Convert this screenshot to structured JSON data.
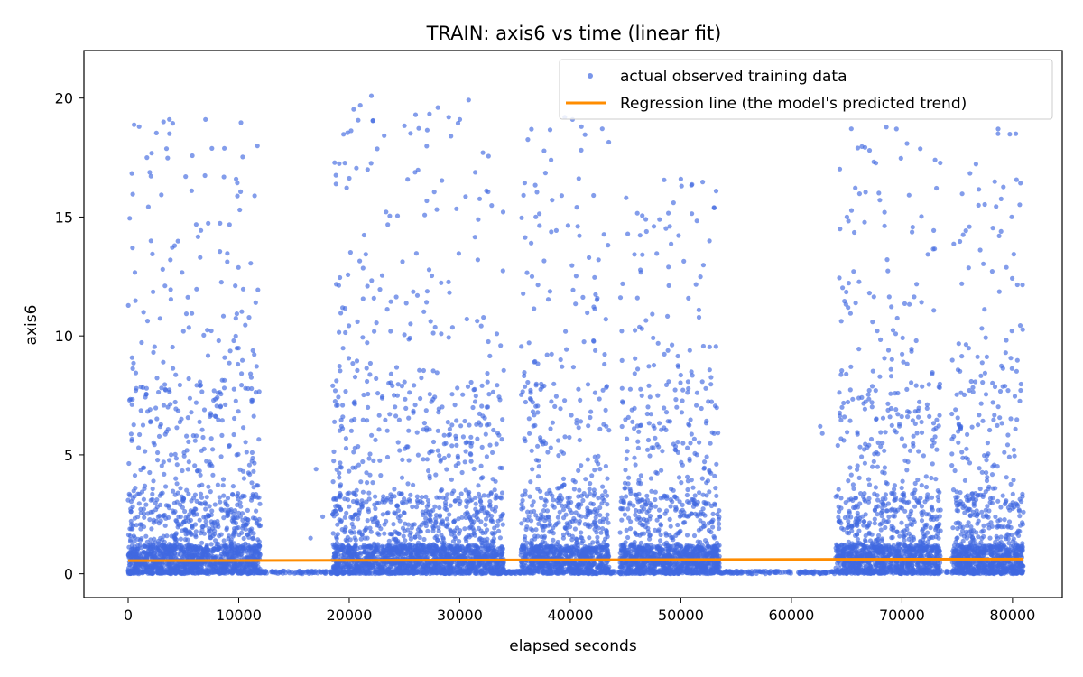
{
  "chart_data": {
    "type": "scatter",
    "title": "TRAIN: axis6 vs time (linear fit)",
    "xlabel": "elapsed seconds",
    "ylabel": "axis6",
    "xlim": [
      -4000,
      84500
    ],
    "ylim": [
      -1,
      22
    ],
    "xticks": [
      0,
      10000,
      20000,
      30000,
      40000,
      50000,
      60000,
      70000,
      80000
    ],
    "yticks": [
      0,
      5,
      10,
      15,
      20
    ],
    "grid": false,
    "legend_position": "top-right",
    "colors": {
      "scatter": "#4169e1",
      "line": "#ff8c00"
    },
    "series": [
      {
        "name": "actual observed training data",
        "kind": "scatter",
        "clusters": [
          {
            "x_range": [
              0,
              12000
            ],
            "max_y": 19.2
          },
          {
            "x_range": [
              18500,
              34000
            ],
            "max_y": 20.1
          },
          {
            "x_range": [
              35500,
              43500
            ],
            "max_y": 19.2
          },
          {
            "x_range": [
              44500,
              53500
            ],
            "max_y": 16.6
          },
          {
            "x_range": [
              64000,
              73500
            ],
            "max_y": 18.8
          },
          {
            "x_range": [
              74500,
              81000
            ],
            "max_y": 18.7
          }
        ],
        "notable_points": [
          {
            "x": 1000,
            "y": 18.8
          },
          {
            "x": 1700,
            "y": 17.5
          },
          {
            "x": 3200,
            "y": 19.0
          },
          {
            "x": 7000,
            "y": 19.1
          },
          {
            "x": 5200,
            "y": 16.7
          },
          {
            "x": 10100,
            "y": 15.3
          },
          {
            "x": 22000,
            "y": 20.1
          },
          {
            "x": 21000,
            "y": 19.7
          },
          {
            "x": 26000,
            "y": 19.3
          },
          {
            "x": 29000,
            "y": 19.2
          },
          {
            "x": 30000,
            "y": 19.1
          },
          {
            "x": 29200,
            "y": 18.4
          },
          {
            "x": 39500,
            "y": 19.2
          },
          {
            "x": 40200,
            "y": 19.1
          },
          {
            "x": 41000,
            "y": 18.8
          },
          {
            "x": 50000,
            "y": 16.6
          },
          {
            "x": 53000,
            "y": 15.4
          },
          {
            "x": 66000,
            "y": 17.9
          },
          {
            "x": 69500,
            "y": 18.7
          },
          {
            "x": 73000,
            "y": 17.4
          },
          {
            "x": 78700,
            "y": 18.7
          },
          {
            "x": 80300,
            "y": 18.5
          },
          {
            "x": 17000,
            "y": 4.4
          },
          {
            "x": 16500,
            "y": 1.5
          },
          {
            "x": 17600,
            "y": 2.4
          },
          {
            "x": 62600,
            "y": 6.2
          },
          {
            "x": 62800,
            "y": 5.9
          }
        ]
      },
      {
        "name": "Regression line (the model's predicted trend)",
        "kind": "line",
        "x": [
          0,
          81000
        ],
        "y": [
          0.55,
          0.62
        ]
      }
    ]
  }
}
